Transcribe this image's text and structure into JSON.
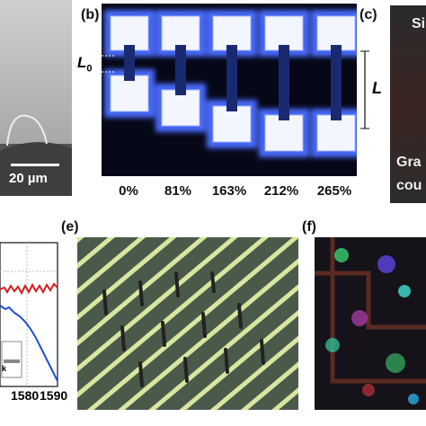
{
  "panel_a": {
    "scale_bar": "20 µm"
  },
  "panel_b": {
    "label": "(b)",
    "l0": "L",
    "l0_sub": "0",
    "l": "L",
    "strains": [
      "0%",
      "81%",
      "163%",
      "212%",
      "265%"
    ]
  },
  "panel_c": {
    "label": "(c)",
    "top_text": "Si",
    "bottom_lines": [
      "Gra",
      "cou"
    ]
  },
  "panel_d": {
    "x_tick_labels": [
      "1580",
      "1590"
    ],
    "inset_text": "k"
  },
  "panel_e": {
    "label": "(e)"
  },
  "panel_f": {
    "label": "(f)"
  }
}
